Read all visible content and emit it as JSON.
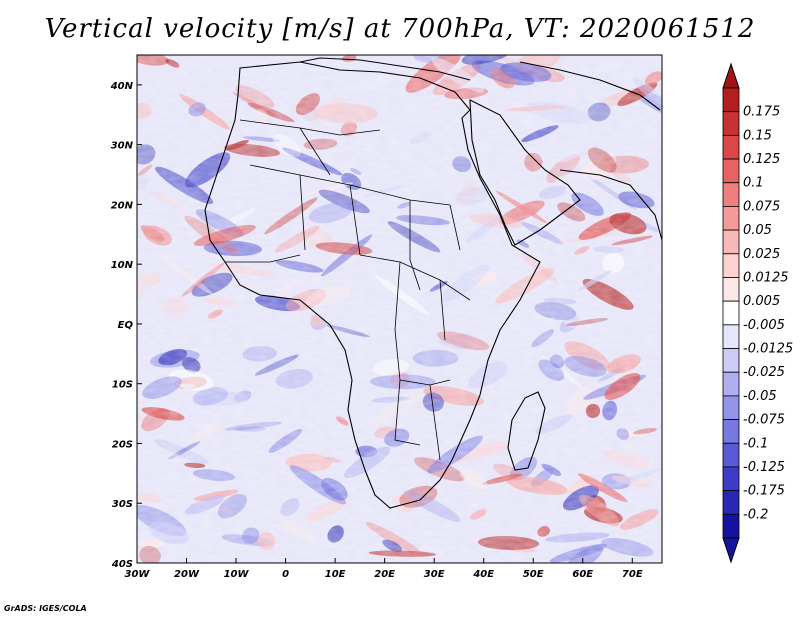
{
  "title": "Vertical velocity [m/s] at 700hPa, VT: 2020061512",
  "credit": "GrADS: IGES/COLA",
  "map": {
    "lon_range": [
      -30,
      76
    ],
    "lat_range": [
      -40,
      45
    ],
    "lon_ticks": [
      {
        "value": -30,
        "label": "30W"
      },
      {
        "value": -20,
        "label": "20W"
      },
      {
        "value": -10,
        "label": "10W"
      },
      {
        "value": 0,
        "label": "0"
      },
      {
        "value": 10,
        "label": "10E"
      },
      {
        "value": 20,
        "label": "20E"
      },
      {
        "value": 30,
        "label": "30E"
      },
      {
        "value": 40,
        "label": "40E"
      },
      {
        "value": 50,
        "label": "50E"
      },
      {
        "value": 60,
        "label": "60E"
      },
      {
        "value": 70,
        "label": "70E"
      }
    ],
    "lat_ticks": [
      {
        "value": 40,
        "label": "40N"
      },
      {
        "value": 30,
        "label": "30N"
      },
      {
        "value": 20,
        "label": "20N"
      },
      {
        "value": 10,
        "label": "10N"
      },
      {
        "value": 0,
        "label": "EQ"
      },
      {
        "value": -10,
        "label": "10S"
      },
      {
        "value": -20,
        "label": "20S"
      },
      {
        "value": -30,
        "label": "30S"
      },
      {
        "value": -40,
        "label": "40S"
      }
    ]
  },
  "colorbar": {
    "levels": [
      {
        "label": "0.175",
        "color": "#b41e1e"
      },
      {
        "label": "0.15",
        "color": "#c83232"
      },
      {
        "label": "0.125",
        "color": "#dc4646"
      },
      {
        "label": "0.1",
        "color": "#e86262"
      },
      {
        "label": "0.075",
        "color": "#f07e7e"
      },
      {
        "label": "0.05",
        "color": "#f59a9a"
      },
      {
        "label": "0.025",
        "color": "#f9b8b8"
      },
      {
        "label": "0.0125",
        "color": "#fcd2d2"
      },
      {
        "label": "0.005",
        "color": "#fde8e8"
      },
      {
        "label": "-0.005",
        "color": "#ffffff"
      },
      {
        "label": "-0.0125",
        "color": "#e6e6fb"
      },
      {
        "label": "-0.025",
        "color": "#ccccf6"
      },
      {
        "label": "-0.05",
        "color": "#b0b0f0"
      },
      {
        "label": "-0.075",
        "color": "#9494ea"
      },
      {
        "label": "-0.1",
        "color": "#7878e2"
      },
      {
        "label": "-0.125",
        "color": "#5a5ad6"
      },
      {
        "label": "-0.175",
        "color": "#3c3cc8"
      },
      {
        "label": "-0.2",
        "color": "#2828b4"
      }
    ],
    "bottom_color": "#1414a0",
    "top_color": "#a01414"
  }
}
